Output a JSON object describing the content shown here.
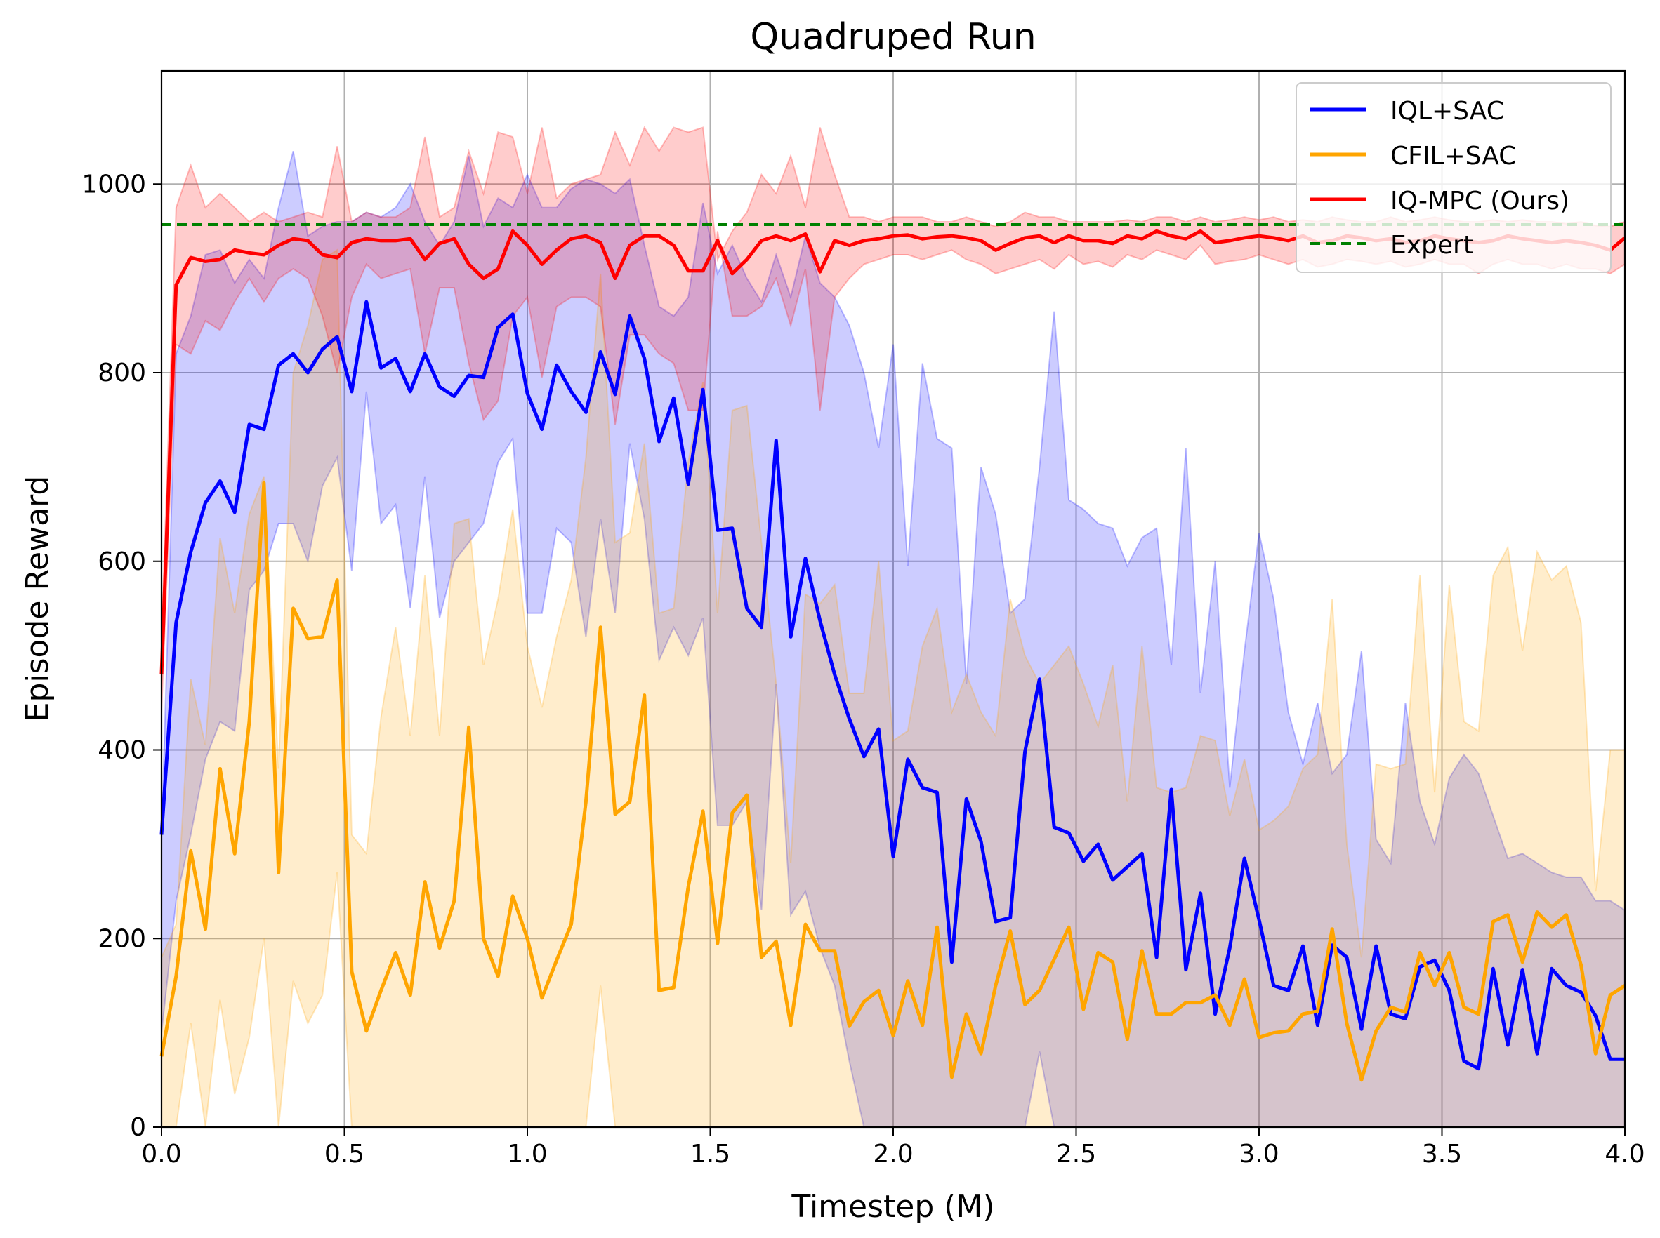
{
  "chart_data": {
    "type": "line",
    "title": "Quadruped Run",
    "xlabel": "Timestep (M)",
    "ylabel": "Episode Reward",
    "xlim": [
      0,
      4.0
    ],
    "ylim": [
      0,
      1120
    ],
    "xticks": [
      "0.0",
      "0.5",
      "1.0",
      "1.5",
      "2.0",
      "2.5",
      "3.0",
      "3.5",
      "4.0"
    ],
    "yticks": [
      "0",
      "200",
      "400",
      "600",
      "800",
      "1000"
    ],
    "grid": true,
    "legend_position": "top-right",
    "expert_level": 957,
    "series": [
      {
        "name": "IQL+SAC",
        "color": "#0000ff",
        "x": [
          0.0,
          0.04,
          0.08,
          0.12,
          0.16,
          0.2,
          0.24,
          0.28,
          0.32,
          0.36,
          0.4,
          0.44,
          0.48,
          0.52,
          0.56,
          0.6,
          0.64,
          0.68,
          0.72,
          0.76,
          0.8,
          0.84,
          0.88,
          0.92,
          0.96,
          1.0,
          1.04,
          1.08,
          1.12,
          1.16,
          1.2,
          1.24,
          1.28,
          1.32,
          1.36,
          1.4,
          1.44,
          1.48,
          1.52,
          1.56,
          1.6,
          1.64,
          1.68,
          1.72,
          1.76,
          1.8,
          1.84,
          1.88,
          1.92,
          1.96,
          2.0,
          2.04,
          2.08,
          2.12,
          2.16,
          2.2,
          2.24,
          2.28,
          2.32,
          2.36,
          2.4,
          2.44,
          2.48,
          2.52,
          2.56,
          2.6,
          2.64,
          2.68,
          2.72,
          2.76,
          2.8,
          2.84,
          2.88,
          2.92,
          2.96,
          3.0,
          3.04,
          3.08,
          3.12,
          3.16,
          3.2,
          3.24,
          3.28,
          3.32,
          3.36,
          3.4,
          3.44,
          3.48,
          3.52,
          3.56,
          3.6,
          3.64,
          3.68,
          3.72,
          3.76,
          3.8,
          3.84,
          3.88,
          3.92,
          3.96,
          4.0
        ],
        "values": [
          310,
          535,
          610,
          662,
          685,
          652,
          745,
          740,
          808,
          820,
          800,
          825,
          838,
          780,
          875,
          805,
          815,
          780,
          820,
          785,
          775,
          797,
          795,
          848,
          862,
          778,
          740,
          808,
          780,
          758,
          822,
          777,
          860,
          815,
          727,
          773,
          682,
          782,
          633,
          635,
          550,
          530,
          728,
          520,
          603,
          537,
          480,
          433,
          393,
          422,
          287,
          390,
          360,
          355,
          175,
          348,
          303,
          218,
          222,
          398,
          475,
          318,
          312,
          282,
          300,
          262,
          276,
          290,
          180,
          358,
          167,
          248,
          120,
          190,
          285,
          220,
          150,
          145,
          192,
          108,
          193,
          180,
          104,
          192,
          120,
          115,
          170,
          177,
          145,
          70,
          62,
          168,
          87,
          167,
          78,
          168,
          150,
          143,
          118,
          72,
          72
        ],
        "band_upper": [
          310,
          820,
          860,
          925,
          930,
          895,
          920,
          900,
          975,
          1035,
          945,
          955,
          960,
          960,
          970,
          965,
          975,
          1000,
          960,
          935,
          960,
          1030,
          955,
          985,
          975,
          1010,
          975,
          975,
          995,
          1005,
          1000,
          990,
          1005,
          935,
          870,
          860,
          880,
          980,
          905,
          935,
          900,
          875,
          925,
          880,
          945,
          895,
          880,
          850,
          800,
          720,
          830,
          595,
          810,
          730,
          720,
          470,
          700,
          650,
          545,
          560,
          700,
          865,
          665,
          655,
          640,
          635,
          595,
          625,
          635,
          490,
          720,
          460,
          600,
          360,
          505,
          630,
          560,
          440,
          385,
          450,
          375,
          395,
          505,
          305,
          280,
          450,
          345,
          300,
          370,
          395,
          375,
          330,
          285,
          290,
          280,
          270,
          265,
          265,
          240,
          240,
          230
        ],
        "band_lower": [
          100,
          240,
          310,
          390,
          430,
          420,
          570,
          590,
          640,
          640,
          600,
          680,
          710,
          590,
          780,
          640,
          660,
          550,
          690,
          540,
          600,
          620,
          640,
          705,
          730,
          545,
          545,
          635,
          620,
          520,
          645,
          545,
          725,
          645,
          495,
          530,
          500,
          540,
          320,
          320,
          345,
          230,
          470,
          225,
          250,
          190,
          150,
          70,
          0,
          0,
          0,
          0,
          0,
          0,
          0,
          0,
          0,
          0,
          0,
          0,
          80,
          0,
          0,
          0,
          0,
          0,
          0,
          0,
          0,
          0,
          0,
          0,
          0,
          0,
          0,
          0,
          0,
          0,
          0,
          0,
          0,
          0,
          0,
          0,
          0,
          0,
          0,
          0,
          0,
          0,
          0,
          0,
          0,
          0,
          0,
          0,
          0,
          0,
          0,
          0,
          0
        ]
      },
      {
        "name": "CFIL+SAC",
        "color": "#ffa500",
        "x": [
          0.0,
          0.04,
          0.08,
          0.12,
          0.16,
          0.2,
          0.24,
          0.28,
          0.32,
          0.36,
          0.4,
          0.44,
          0.48,
          0.52,
          0.56,
          0.6,
          0.64,
          0.68,
          0.72,
          0.76,
          0.8,
          0.84,
          0.88,
          0.92,
          0.96,
          1.0,
          1.04,
          1.08,
          1.12,
          1.16,
          1.2,
          1.24,
          1.28,
          1.32,
          1.36,
          1.4,
          1.44,
          1.48,
          1.52,
          1.56,
          1.6,
          1.64,
          1.68,
          1.72,
          1.76,
          1.8,
          1.84,
          1.88,
          1.92,
          1.96,
          2.0,
          2.04,
          2.08,
          2.12,
          2.16,
          2.2,
          2.24,
          2.28,
          2.32,
          2.36,
          2.4,
          2.44,
          2.48,
          2.52,
          2.56,
          2.6,
          2.64,
          2.68,
          2.72,
          2.76,
          2.8,
          2.84,
          2.88,
          2.92,
          2.96,
          3.0,
          3.04,
          3.08,
          3.12,
          3.16,
          3.2,
          3.24,
          3.28,
          3.32,
          3.36,
          3.4,
          3.44,
          3.48,
          3.52,
          3.56,
          3.6,
          3.64,
          3.68,
          3.72,
          3.76,
          3.8,
          3.84,
          3.88,
          3.92,
          3.96,
          4.0
        ],
        "values": [
          75,
          160,
          293,
          210,
          380,
          290,
          430,
          683,
          270,
          550,
          518,
          520,
          580,
          165,
          102,
          145,
          185,
          140,
          260,
          190,
          240,
          424,
          200,
          160,
          245,
          200,
          137,
          177,
          215,
          345,
          530,
          332,
          345,
          458,
          145,
          148,
          255,
          335,
          195,
          333,
          352,
          180,
          197,
          108,
          215,
          187,
          187,
          107,
          133,
          145,
          97,
          155,
          108,
          212,
          53,
          120,
          78,
          150,
          208,
          130,
          145,
          178,
          212,
          125,
          185,
          175,
          93,
          187,
          120,
          120,
          132,
          132,
          140,
          108,
          157,
          95,
          100,
          102,
          120,
          123,
          210,
          110,
          50,
          102,
          127,
          122,
          185,
          150,
          185,
          127,
          120,
          218,
          225,
          175,
          228,
          212,
          225,
          172,
          78,
          140,
          150
        ],
        "band_upper": [
          180,
          215,
          475,
          405,
          625,
          545,
          650,
          690,
          380,
          800,
          850,
          920,
          930,
          310,
          290,
          435,
          530,
          415,
          585,
          415,
          640,
          645,
          490,
          560,
          655,
          510,
          445,
          520,
          580,
          710,
          905,
          620,
          630,
          725,
          545,
          550,
          705,
          790,
          545,
          760,
          765,
          620,
          470,
          280,
          565,
          555,
          575,
          460,
          460,
          600,
          410,
          420,
          510,
          550,
          440,
          480,
          440,
          415,
          560,
          500,
          470,
          490,
          510,
          470,
          425,
          490,
          345,
          510,
          360,
          355,
          360,
          415,
          410,
          330,
          390,
          315,
          325,
          340,
          380,
          395,
          560,
          300,
          180,
          385,
          380,
          385,
          585,
          355,
          575,
          430,
          420,
          585,
          615,
          505,
          610,
          580,
          595,
          535,
          250,
          400,
          400
        ],
        "band_lower": [
          0,
          0,
          110,
          0,
          135,
          35,
          95,
          200,
          0,
          155,
          110,
          140,
          270,
          0,
          0,
          0,
          0,
          0,
          0,
          0,
          0,
          0,
          0,
          0,
          0,
          0,
          0,
          0,
          0,
          0,
          150,
          0,
          0,
          0,
          0,
          0,
          0,
          0,
          0,
          0,
          0,
          0,
          0,
          0,
          0,
          0,
          0,
          0,
          0,
          0,
          0,
          0,
          0,
          0,
          0,
          0,
          0,
          0,
          0,
          0,
          0,
          0,
          0,
          0,
          0,
          0,
          0,
          0,
          0,
          0,
          0,
          0,
          0,
          0,
          0,
          0,
          0,
          0,
          0,
          0,
          0,
          0,
          0,
          0,
          0,
          0,
          0,
          0,
          0,
          0,
          0,
          0,
          0,
          0,
          0,
          0,
          0,
          0,
          0,
          0,
          0
        ]
      },
      {
        "name": "IQ-MPC (Ours)",
        "color": "#ff0000",
        "x": [
          0.0,
          0.04,
          0.08,
          0.12,
          0.16,
          0.2,
          0.24,
          0.28,
          0.32,
          0.36,
          0.4,
          0.44,
          0.48,
          0.52,
          0.56,
          0.6,
          0.64,
          0.68,
          0.72,
          0.76,
          0.8,
          0.84,
          0.88,
          0.92,
          0.96,
          1.0,
          1.04,
          1.08,
          1.12,
          1.16,
          1.2,
          1.24,
          1.28,
          1.32,
          1.36,
          1.4,
          1.44,
          1.48,
          1.52,
          1.56,
          1.6,
          1.64,
          1.68,
          1.72,
          1.76,
          1.8,
          1.84,
          1.88,
          1.92,
          1.96,
          2.0,
          2.04,
          2.08,
          2.12,
          2.16,
          2.2,
          2.24,
          2.28,
          2.32,
          2.36,
          2.4,
          2.44,
          2.48,
          2.52,
          2.56,
          2.6,
          2.64,
          2.68,
          2.72,
          2.76,
          2.8,
          2.84,
          2.88,
          2.92,
          2.96,
          3.0,
          3.04,
          3.08,
          3.12,
          3.16,
          3.2,
          3.24,
          3.28,
          3.32,
          3.36,
          3.4,
          3.44,
          3.48,
          3.52,
          3.56,
          3.6,
          3.64,
          3.68,
          3.72,
          3.76,
          3.8,
          3.84,
          3.88,
          3.92,
          3.96,
          4.0
        ],
        "values": [
          480,
          893,
          922,
          918,
          920,
          930,
          927,
          925,
          935,
          942,
          940,
          925,
          922,
          938,
          942,
          940,
          940,
          942,
          920,
          937,
          942,
          915,
          900,
          910,
          950,
          935,
          915,
          930,
          942,
          945,
          938,
          900,
          935,
          945,
          945,
          935,
          908,
          908,
          940,
          905,
          920,
          940,
          945,
          940,
          947,
          907,
          940,
          935,
          940,
          942,
          945,
          946,
          942,
          944,
          945,
          943,
          940,
          930,
          937,
          943,
          945,
          938,
          945,
          940,
          940,
          937,
          945,
          942,
          950,
          945,
          942,
          950,
          938,
          940,
          943,
          945,
          943,
          940,
          945,
          938,
          940,
          945,
          943,
          940,
          942,
          938,
          940,
          945,
          942,
          940,
          938,
          940,
          945,
          942,
          940,
          938,
          940,
          938,
          935,
          930,
          943
        ],
        "band_upper": [
          520,
          975,
          1020,
          975,
          990,
          975,
          960,
          970,
          960,
          965,
          970,
          965,
          1040,
          960,
          970,
          965,
          965,
          975,
          1050,
          965,
          975,
          1035,
          990,
          1055,
          1050,
          990,
          1060,
          985,
          1000,
          1005,
          1010,
          1055,
          1020,
          1060,
          1035,
          1060,
          1055,
          1060,
          920,
          950,
          970,
          1010,
          990,
          1030,
          975,
          1060,
          1010,
          965,
          965,
          960,
          965,
          965,
          965,
          960,
          960,
          965,
          960,
          955,
          960,
          970,
          965,
          965,
          960,
          960,
          960,
          960,
          962,
          960,
          965,
          965,
          960,
          965,
          960,
          962,
          965,
          962,
          965,
          960,
          962,
          960,
          965,
          962,
          960,
          960,
          965,
          960,
          962,
          965,
          962,
          960,
          960,
          962,
          960,
          962,
          960,
          960,
          958,
          960,
          956,
          955,
          960
        ],
        "band_lower": [
          440,
          830,
          820,
          855,
          845,
          875,
          900,
          875,
          900,
          910,
          900,
          860,
          800,
          880,
          915,
          900,
          905,
          910,
          820,
          890,
          890,
          810,
          750,
          770,
          860,
          880,
          795,
          870,
          880,
          880,
          870,
          745,
          840,
          840,
          820,
          810,
          760,
          760,
          950,
          860,
          860,
          870,
          900,
          850,
          910,
          760,
          880,
          900,
          915,
          920,
          925,
          925,
          920,
          925,
          930,
          920,
          915,
          905,
          910,
          915,
          920,
          910,
          925,
          915,
          918,
          912,
          925,
          920,
          930,
          925,
          920,
          935,
          915,
          918,
          920,
          925,
          920,
          915,
          920,
          912,
          915,
          920,
          918,
          915,
          918,
          912,
          915,
          920,
          915,
          915,
          905,
          915,
          920,
          915,
          915,
          910,
          915,
          910,
          910,
          905,
          915
        ]
      },
      {
        "name": "Expert",
        "color": "#008000",
        "style": "dashed",
        "x": [
          0.0,
          4.0
        ],
        "values": [
          957,
          957
        ]
      }
    ]
  }
}
